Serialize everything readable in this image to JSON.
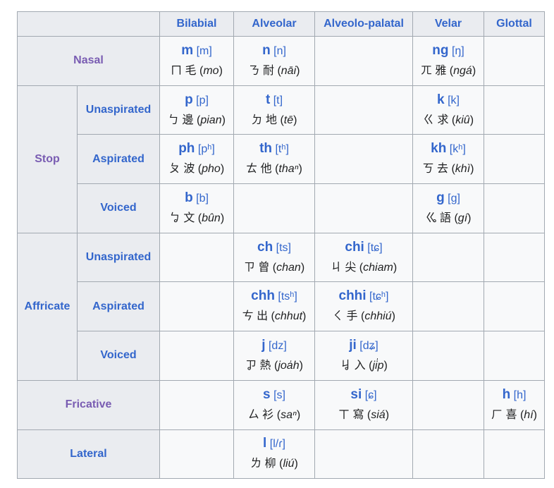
{
  "colors": {
    "link": "#3366cc",
    "visited": "#795cb2",
    "header_bg": "#eaecf0",
    "cell_bg": "#f8f9fa",
    "border": "#a2a9b1"
  },
  "columns": [
    "Bilabial",
    "Alveolar",
    "Alveolo-palatal",
    "Velar",
    "Glottal"
  ],
  "rows": [
    {
      "group": "Nasal",
      "group_visited": true,
      "group_span": 1,
      "sub": null,
      "cells": [
        {
          "poj": "m",
          "ipa": "[m]",
          "zhuyin": "ㄇ",
          "hanzi": "毛",
          "rom": "mo"
        },
        {
          "poj": "n",
          "ipa": "[n]",
          "zhuyin": "ㄋ",
          "hanzi": "耐",
          "rom": "nāi"
        },
        null,
        {
          "poj": "ng",
          "ipa": "[ŋ]",
          "zhuyin": "ㄫ",
          "hanzi": "雅",
          "rom": "ngá"
        },
        null
      ]
    },
    {
      "group": "Stop",
      "group_visited": true,
      "group_span": 3,
      "sub": "Unaspirated",
      "cells": [
        {
          "poj": "p",
          "ipa": "[p]",
          "zhuyin": "ㄅ",
          "hanzi": "邊",
          "rom": "pian"
        },
        {
          "poj": "t",
          "ipa": "[t]",
          "zhuyin": "ㄉ",
          "hanzi": "地",
          "rom": "tē"
        },
        null,
        {
          "poj": "k",
          "ipa": "[k]",
          "zhuyin": "ㄍ",
          "hanzi": "求",
          "rom": "kiû"
        },
        null
      ]
    },
    {
      "group": null,
      "sub": "Aspirated",
      "cells": [
        {
          "poj": "ph",
          "ipa": "[pʰ]",
          "zhuyin": "ㄆ",
          "hanzi": "波",
          "rom": "pho"
        },
        {
          "poj": "th",
          "ipa": "[tʰ]",
          "zhuyin": "ㄊ",
          "hanzi": "他",
          "rom": "thaⁿ"
        },
        null,
        {
          "poj": "kh",
          "ipa": "[kʰ]",
          "zhuyin": "ㄎ",
          "hanzi": "去",
          "rom": "khì"
        },
        null
      ]
    },
    {
      "group": null,
      "sub": "Voiced",
      "cells": [
        {
          "poj": "b",
          "ipa": "[b]",
          "zhuyin": "ㆠ",
          "hanzi": "文",
          "rom": "bûn"
        },
        null,
        null,
        {
          "poj": "g",
          "ipa": "[g]",
          "zhuyin": "ㆣ",
          "hanzi": "語",
          "rom": "gí"
        },
        null
      ]
    },
    {
      "group": "Affricate",
      "group_visited": false,
      "group_span": 3,
      "sub": "Unaspirated",
      "cells": [
        null,
        {
          "poj": "ch",
          "ipa": "[ts]",
          "zhuyin": "ㄗ",
          "hanzi": "曾",
          "rom": "chan"
        },
        {
          "poj": "chi",
          "ipa": "[tɕ]",
          "zhuyin": "ㄐ",
          "hanzi": "尖",
          "rom": "chiam"
        },
        null,
        null
      ]
    },
    {
      "group": null,
      "sub": "Aspirated",
      "cells": [
        null,
        {
          "poj": "chh",
          "ipa": "[tsʰ]",
          "zhuyin": "ㄘ",
          "hanzi": "出",
          "rom": "chhut"
        },
        {
          "poj": "chhi",
          "ipa": "[tɕʰ]",
          "zhuyin": "ㄑ",
          "hanzi": "手",
          "rom": "chhiú"
        },
        null,
        null
      ]
    },
    {
      "group": null,
      "sub": "Voiced",
      "cells": [
        null,
        {
          "poj": "j",
          "ipa": "[dz]",
          "zhuyin": "ㆡ",
          "hanzi": "熱",
          "rom": "joa̍h"
        },
        {
          "poj": "ji",
          "ipa": "[dʑ]",
          "zhuyin": "ㆢ",
          "hanzi": "入",
          "rom": "ji̍p"
        },
        null,
        null
      ]
    },
    {
      "group": "Fricative",
      "group_visited": true,
      "group_span": 1,
      "sub": null,
      "cells": [
        null,
        {
          "poj": "s",
          "ipa": "[s]",
          "zhuyin": "ㄙ",
          "hanzi": "衫",
          "rom": "saⁿ"
        },
        {
          "poj": "si",
          "ipa": "[ɕ]",
          "zhuyin": "ㄒ",
          "hanzi": "寫",
          "rom": "siá"
        },
        null,
        {
          "poj": "h",
          "ipa": "[h]",
          "zhuyin": "ㄏ",
          "hanzi": "喜",
          "rom": "hí"
        }
      ]
    },
    {
      "group": "Lateral",
      "group_visited": false,
      "group_span": 1,
      "sub": null,
      "cells": [
        null,
        {
          "poj": "l",
          "ipa": "[l/ɾ]",
          "zhuyin": "ㄌ",
          "hanzi": "柳",
          "rom": "liú"
        },
        null,
        null,
        null
      ]
    }
  ]
}
